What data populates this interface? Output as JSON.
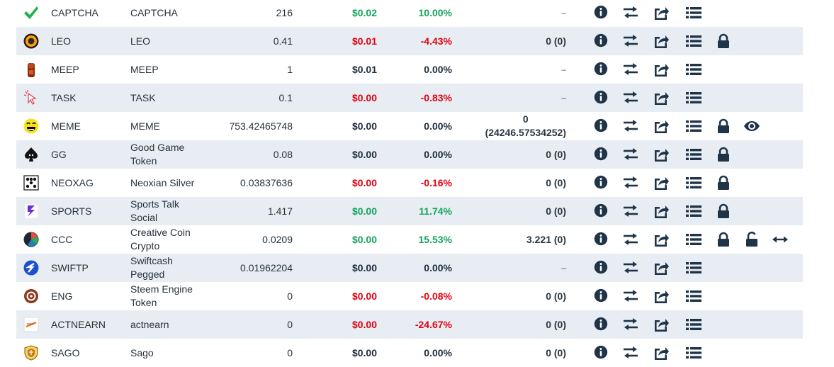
{
  "colors": {
    "positive": "#13a35a",
    "negative": "#e3000f",
    "neutral": "#1f2d3d",
    "row_shade": "#e7edf3",
    "icon": "#1f3448"
  },
  "rows": [
    {
      "symbol": "CAPTCHA",
      "name": "CAPTCHA",
      "balance": "216",
      "price": "$0.02",
      "price_dir": "pos",
      "change": "10.00%",
      "change_dir": "pos",
      "stake": "–",
      "logo": "check-icon",
      "actions": [
        "info",
        "transfer",
        "share",
        "list"
      ]
    },
    {
      "symbol": "LEO",
      "name": "LEO",
      "balance": "0.41",
      "price": "$0.01",
      "price_dir": "neg",
      "change": "-4.43%",
      "change_dir": "neg",
      "stake": "0 (0)",
      "logo": "leo-icon",
      "actions": [
        "info",
        "transfer",
        "share",
        "list",
        "lock"
      ]
    },
    {
      "symbol": "MEEP",
      "name": "MEEP",
      "balance": "1",
      "price": "$0.01",
      "price_dir": "neu",
      "change": "0.00%",
      "change_dir": "neu",
      "stake": "–",
      "logo": "meep-icon",
      "actions": [
        "info",
        "transfer",
        "share",
        "list"
      ]
    },
    {
      "symbol": "TASK",
      "name": "TASK",
      "balance": "0.1",
      "price": "$0.00",
      "price_dir": "neg",
      "change": "-0.83%",
      "change_dir": "neg",
      "stake": "–",
      "logo": "cursor-icon",
      "actions": [
        "info",
        "transfer",
        "share",
        "list"
      ]
    },
    {
      "symbol": "MEME",
      "name": "MEME",
      "balance": "753.42465748",
      "price": "$0.00",
      "price_dir": "neu",
      "change": "0.00%",
      "change_dir": "neu",
      "stake": "0",
      "stake2": "(24246.57534252)",
      "logo": "smiley-icon",
      "actions": [
        "info",
        "transfer",
        "share",
        "list",
        "lock",
        "eye"
      ]
    },
    {
      "symbol": "GG",
      "name": "Good Game Token",
      "balance": "0.08",
      "price": "$0.00",
      "price_dir": "neu",
      "change": "0.00%",
      "change_dir": "neu",
      "stake": "0 (0)",
      "logo": "spade-icon",
      "actions": [
        "info",
        "transfer",
        "share",
        "list",
        "lock"
      ]
    },
    {
      "symbol": "NEOXAG",
      "name": "Neoxian Silver",
      "balance": "0.03837636",
      "price": "$0.00",
      "price_dir": "neg",
      "change": "-0.16%",
      "change_dir": "neg",
      "stake": "0 (0)",
      "logo": "dice-icon",
      "actions": [
        "info",
        "transfer",
        "share",
        "list",
        "lock"
      ]
    },
    {
      "symbol": "SPORTS",
      "name": "Sports Talk Social",
      "balance": "1.417",
      "price": "$0.00",
      "price_dir": "pos",
      "change": "11.74%",
      "change_dir": "pos",
      "stake": "0 (0)",
      "logo": "sports-icon",
      "actions": [
        "info",
        "transfer",
        "share",
        "list",
        "lock"
      ]
    },
    {
      "symbol": "CCC",
      "name": "Creative Coin Crypto",
      "balance": "0.0209",
      "price": "$0.00",
      "price_dir": "pos",
      "change": "15.53%",
      "change_dir": "pos",
      "stake": "3.221 (0)",
      "logo": "ccc-icon",
      "actions": [
        "info",
        "transfer",
        "share",
        "list",
        "lock",
        "unlock",
        "delegate"
      ]
    },
    {
      "symbol": "SWIFTP",
      "name": "Swiftcash Pegged",
      "balance": "0.01962204",
      "price": "$0.00",
      "price_dir": "neu",
      "change": "0.00%",
      "change_dir": "neu",
      "stake": "–",
      "logo": "swift-icon",
      "actions": [
        "info",
        "transfer",
        "share",
        "list"
      ]
    },
    {
      "symbol": "ENG",
      "name": "Steem Engine Token",
      "balance": "0",
      "price": "$0.00",
      "price_dir": "neg",
      "change": "-0.08%",
      "change_dir": "neg",
      "stake": "0 (0)",
      "logo": "gear-icon",
      "actions": [
        "info",
        "transfer",
        "share",
        "list"
      ]
    },
    {
      "symbol": "ACTNEARN",
      "name": "actnearn",
      "balance": "0",
      "price": "$0.00",
      "price_dir": "neg",
      "change": "-24.67%",
      "change_dir": "neg",
      "stake": "0 (0)",
      "logo": "actnearn-icon",
      "actions": [
        "info",
        "transfer",
        "share",
        "list"
      ]
    },
    {
      "symbol": "SAGO",
      "name": "Sago",
      "balance": "0",
      "price": "$0.00",
      "price_dir": "neu",
      "change": "0.00%",
      "change_dir": "neu",
      "stake": "0 (0)",
      "logo": "shield-icon",
      "actions": [
        "info",
        "transfer",
        "share",
        "list"
      ]
    }
  ]
}
